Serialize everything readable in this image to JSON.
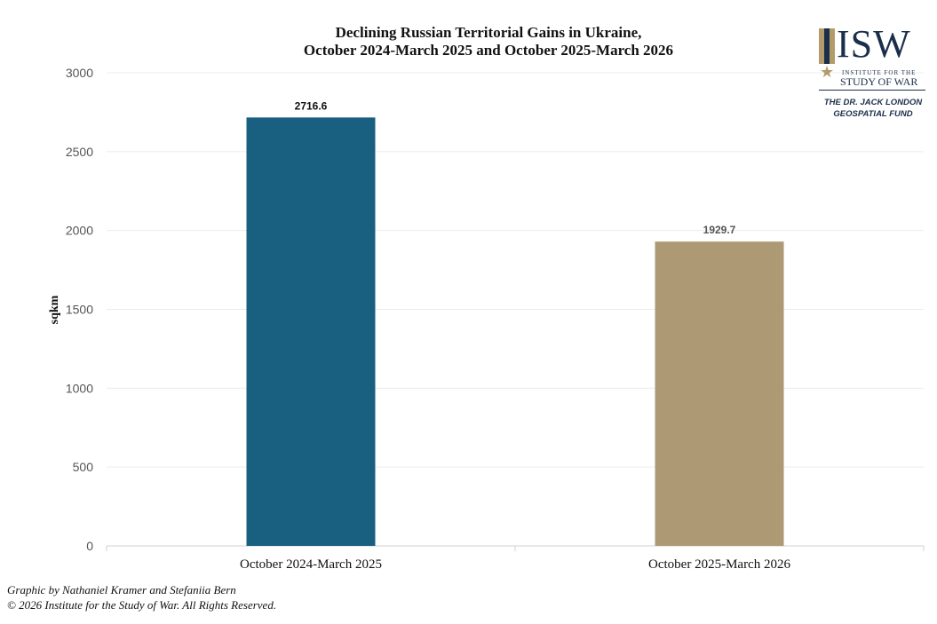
{
  "chart_data": {
    "type": "bar",
    "title_lines": [
      "Declining Russian Territorial Gains in Ukraine,",
      "October 2024-March 2025 and October 2025-March 2026"
    ],
    "xlabel": "",
    "ylabel": "sqkm",
    "categories": [
      "October 2024-March 2025",
      "October 2025-March 2026"
    ],
    "values": [
      2716.6,
      1929.7
    ],
    "data_labels": [
      "2716.6",
      "1929.7"
    ],
    "bar_colors": [
      "#185f80",
      "#ad9a74"
    ],
    "ylim": [
      0,
      3000
    ],
    "yticks": [
      0,
      500,
      1000,
      1500,
      2000,
      2500,
      3000
    ],
    "grid": true
  },
  "logo": {
    "mark": "ISW",
    "line1": "INSTITUTE FOR THE",
    "line2": "STUDY OF WAR",
    "fund_line1": "THE DR. JACK LONDON",
    "fund_line2": "GEOSPATIAL FUND"
  },
  "credits": {
    "line1": "Graphic by Nathaniel Kramer and Stefaniia Bern",
    "line2": "© 2026 Institute for the Study of War. All Rights Reserved."
  }
}
